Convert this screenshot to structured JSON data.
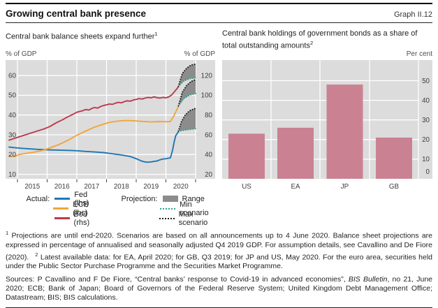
{
  "header": {
    "title": "Growing central bank presence",
    "graph_label": "Graph II.12"
  },
  "left_panel": {
    "title": "Central bank balance sheets expand further",
    "footnote_marker": "1",
    "unit_left": "% of GDP",
    "unit_right": "% of GDP"
  },
  "right_panel": {
    "title": "Central bank holdings of government bonds as a share of total outstanding amounts",
    "footnote_marker": "2",
    "unit": "Per cent"
  },
  "legend": {
    "actual_label": "Actual:",
    "projection_label": "Projection:",
    "fed": "Fed (lhs)",
    "ecb": "ECB (lhs)",
    "boj": "BoJ (rhs)",
    "range": "Range",
    "min": "Min scenario",
    "max": "Max scenario"
  },
  "footnotes": [
    {
      "marker": "1",
      "text": "Projections are until end-2020. Scenarios are based on all announcements up to 4 June 2020. Balance sheet projections are expressed in percentage of annualised and seasonally adjusted Q4 2019 GDP. For assumption details, see Cavallino and De Fiore (2020)."
    },
    {
      "marker": "2",
      "text": "Latest available data: for EA, April 2020; for GB, Q3 2019; for JP and US, May 2020. For the euro area, securities held under the Public Sector Purchase Programme and the Securities Market Programme."
    }
  ],
  "sources": {
    "prefix": "Sources: P Cavallino and F De Fiore, “Central banks’ response to Covid-19 in advanced economies”, ",
    "italic": "BIS Bulletin",
    "suffix": ", no 21, June 2020; ECB; Bank of Japan; Board of Governors of the Federal Reserve System; United Kingdom Debt Management Office; Datastream; BIS; BIS calculations."
  },
  "colors": {
    "fed": "#1f77b4",
    "ecb": "#f2a53a",
    "boj": "#bc3a4d",
    "min_scenario": "#2f9e8f",
    "max_scenario": "#1c1c1c",
    "range": "#8c8c8c",
    "bars": "#ca8292",
    "plot_bg": "#dcdcdc",
    "grid": "#ffffff",
    "tick_text": "#3d3d3d",
    "rule": "#000000"
  },
  "chart_data": [
    {
      "type": "line",
      "title": "Central bank balance sheets expand further",
      "unit_left": "% of GDP",
      "unit_right": "% of GDP",
      "x_range": [
        2014.7,
        2021.0
      ],
      "x_gridlines": [
        2015,
        2016,
        2017,
        2018,
        2019,
        2020,
        2021
      ],
      "x_tick_labels": [
        "2015",
        "2016",
        "2017",
        "2018",
        "2019",
        "2020"
      ],
      "yticks_left": [
        10,
        20,
        30,
        40,
        50,
        60
      ],
      "yticks_right": [
        20,
        40,
        60,
        80,
        100,
        120
      ],
      "ylim_left": [
        7.7,
        67.8
      ],
      "legend_position": "below",
      "series": [
        {
          "name": "Fed (lhs)",
          "axis": "left",
          "color": "#1f77b4",
          "points": [
            [
              2014.7,
              23.8
            ],
            [
              2014.9,
              23.5
            ],
            [
              2015.1,
              23.2
            ],
            [
              2015.4,
              22.9
            ],
            [
              2015.7,
              22.6
            ],
            [
              2016.0,
              22.4
            ],
            [
              2016.4,
              22.25
            ],
            [
              2016.8,
              22.1
            ],
            [
              2017.0,
              21.95
            ],
            [
              2017.3,
              21.6
            ],
            [
              2017.6,
              21.3
            ],
            [
              2017.9,
              21.0
            ],
            [
              2018.2,
              20.4
            ],
            [
              2018.5,
              19.8
            ],
            [
              2018.8,
              19.0
            ],
            [
              2019.0,
              17.9
            ],
            [
              2019.2,
              16.6
            ],
            [
              2019.35,
              16.1
            ],
            [
              2019.5,
              16.3
            ],
            [
              2019.7,
              16.8
            ],
            [
              2019.85,
              17.6
            ],
            [
              2020.0,
              17.9
            ],
            [
              2020.15,
              18.3
            ],
            [
              2020.22,
              22.0
            ],
            [
              2020.28,
              26.5
            ],
            [
              2020.33,
              29.5
            ],
            [
              2020.42,
              31.6
            ]
          ]
        },
        {
          "name": "ECB (lhs)",
          "axis": "left",
          "color": "#f2a53a",
          "points": [
            [
              2014.7,
              19.6
            ],
            [
              2014.8,
              19.1
            ],
            [
              2014.95,
              19.2
            ],
            [
              2015.05,
              20.0
            ],
            [
              2015.3,
              20.6
            ],
            [
              2015.6,
              21.3
            ],
            [
              2015.9,
              22.3
            ],
            [
              2016.1,
              23.4
            ],
            [
              2016.4,
              25.1
            ],
            [
              2016.7,
              27.2
            ],
            [
              2017.0,
              29.8
            ],
            [
              2017.3,
              31.9
            ],
            [
              2017.6,
              33.9
            ],
            [
              2017.9,
              35.4
            ],
            [
              2018.1,
              36.3
            ],
            [
              2018.3,
              36.8
            ],
            [
              2018.6,
              37.2
            ],
            [
              2018.9,
              37.1
            ],
            [
              2019.2,
              36.8
            ],
            [
              2019.5,
              36.5
            ],
            [
              2019.8,
              36.7
            ],
            [
              2020.0,
              36.6
            ],
            [
              2020.15,
              36.7
            ],
            [
              2020.25,
              39.0
            ],
            [
              2020.33,
              41.5
            ],
            [
              2020.42,
              44.3
            ]
          ]
        },
        {
          "name": "BoJ (rhs)",
          "axis": "right",
          "color": "#bc3a4d",
          "points": [
            [
              2014.7,
              54.5
            ],
            [
              2014.9,
              56.4
            ],
            [
              2015.1,
              58.4
            ],
            [
              2015.3,
              60.3
            ],
            [
              2015.5,
              62.2
            ],
            [
              2015.7,
              64.2
            ],
            [
              2015.9,
              66.0
            ],
            [
              2016.1,
              68.5
            ],
            [
              2016.3,
              72.0
            ],
            [
              2016.5,
              75.0
            ],
            [
              2016.7,
              78.2
            ],
            [
              2016.9,
              81.2
            ],
            [
              2017.0,
              82.8
            ],
            [
              2017.1,
              83.6
            ],
            [
              2017.2,
              84.4
            ],
            [
              2017.3,
              85.6
            ],
            [
              2017.4,
              85.0
            ],
            [
              2017.5,
              86.6
            ],
            [
              2017.6,
              87.6
            ],
            [
              2017.7,
              87.0
            ],
            [
              2017.8,
              88.6
            ],
            [
              2017.9,
              89.6
            ],
            [
              2018.0,
              90.3
            ],
            [
              2018.1,
              91.2
            ],
            [
              2018.2,
              90.8
            ],
            [
              2018.3,
              92.0
            ],
            [
              2018.4,
              92.8
            ],
            [
              2018.5,
              92.4
            ],
            [
              2018.6,
              93.6
            ],
            [
              2018.7,
              94.4
            ],
            [
              2018.8,
              94.0
            ],
            [
              2018.9,
              95.2
            ],
            [
              2019.0,
              95.8
            ],
            [
              2019.1,
              96.6
            ],
            [
              2019.2,
              96.2
            ],
            [
              2019.3,
              97.2
            ],
            [
              2019.4,
              97.8
            ],
            [
              2019.5,
              97.4
            ],
            [
              2019.6,
              98.4
            ],
            [
              2019.7,
              97.6
            ],
            [
              2019.8,
              97.2
            ],
            [
              2019.9,
              97.8
            ],
            [
              2020.0,
              97.4
            ],
            [
              2020.1,
              98.4
            ],
            [
              2020.2,
              100.5
            ],
            [
              2020.3,
              104.0
            ],
            [
              2020.42,
              108.5
            ]
          ]
        }
      ],
      "projections": [
        {
          "series": "Fed (lhs)",
          "axis": "left",
          "min": [
            [
              2020.42,
              31.8
            ],
            [
              2020.6,
              32.3
            ],
            [
              2020.8,
              32.7
            ],
            [
              2021.0,
              33.1
            ]
          ],
          "max": [
            [
              2020.42,
              31.8
            ],
            [
              2020.52,
              36.5
            ],
            [
              2020.65,
              40.0
            ],
            [
              2020.8,
              42.2
            ],
            [
              2021.0,
              43.4
            ]
          ]
        },
        {
          "series": "ECB (lhs)",
          "axis": "left",
          "min": [
            [
              2020.42,
              44.6
            ],
            [
              2020.6,
              48.3
            ],
            [
              2020.8,
              50.1
            ],
            [
              2021.0,
              50.8
            ]
          ],
          "max": [
            [
              2020.42,
              44.6
            ],
            [
              2020.55,
              51.5
            ],
            [
              2020.7,
              55.0
            ],
            [
              2020.85,
              57.0
            ],
            [
              2021.0,
              57.9
            ]
          ]
        },
        {
          "series": "BoJ (rhs)",
          "axis": "right",
          "min": [
            [
              2020.42,
              109.0
            ],
            [
              2020.6,
              114.5
            ],
            [
              2020.8,
              116.8
            ],
            [
              2021.0,
              117.6
            ]
          ],
          "max": [
            [
              2020.42,
              109.0
            ],
            [
              2020.55,
              122.0
            ],
            [
              2020.7,
              127.5
            ],
            [
              2020.85,
              130.5
            ],
            [
              2021.0,
              131.6
            ]
          ]
        }
      ]
    },
    {
      "type": "bar",
      "title": "Central bank holdings of government bonds as a share of total outstanding amounts",
      "unit": "Per cent",
      "categories": [
        "US",
        "EA",
        "JP",
        "GB"
      ],
      "values": [
        23,
        26,
        48,
        21
      ],
      "yticks": [
        0,
        10,
        20,
        30,
        40,
        50
      ],
      "ylim": [
        0,
        60.5
      ],
      "bar_color": "#ca8292"
    }
  ]
}
